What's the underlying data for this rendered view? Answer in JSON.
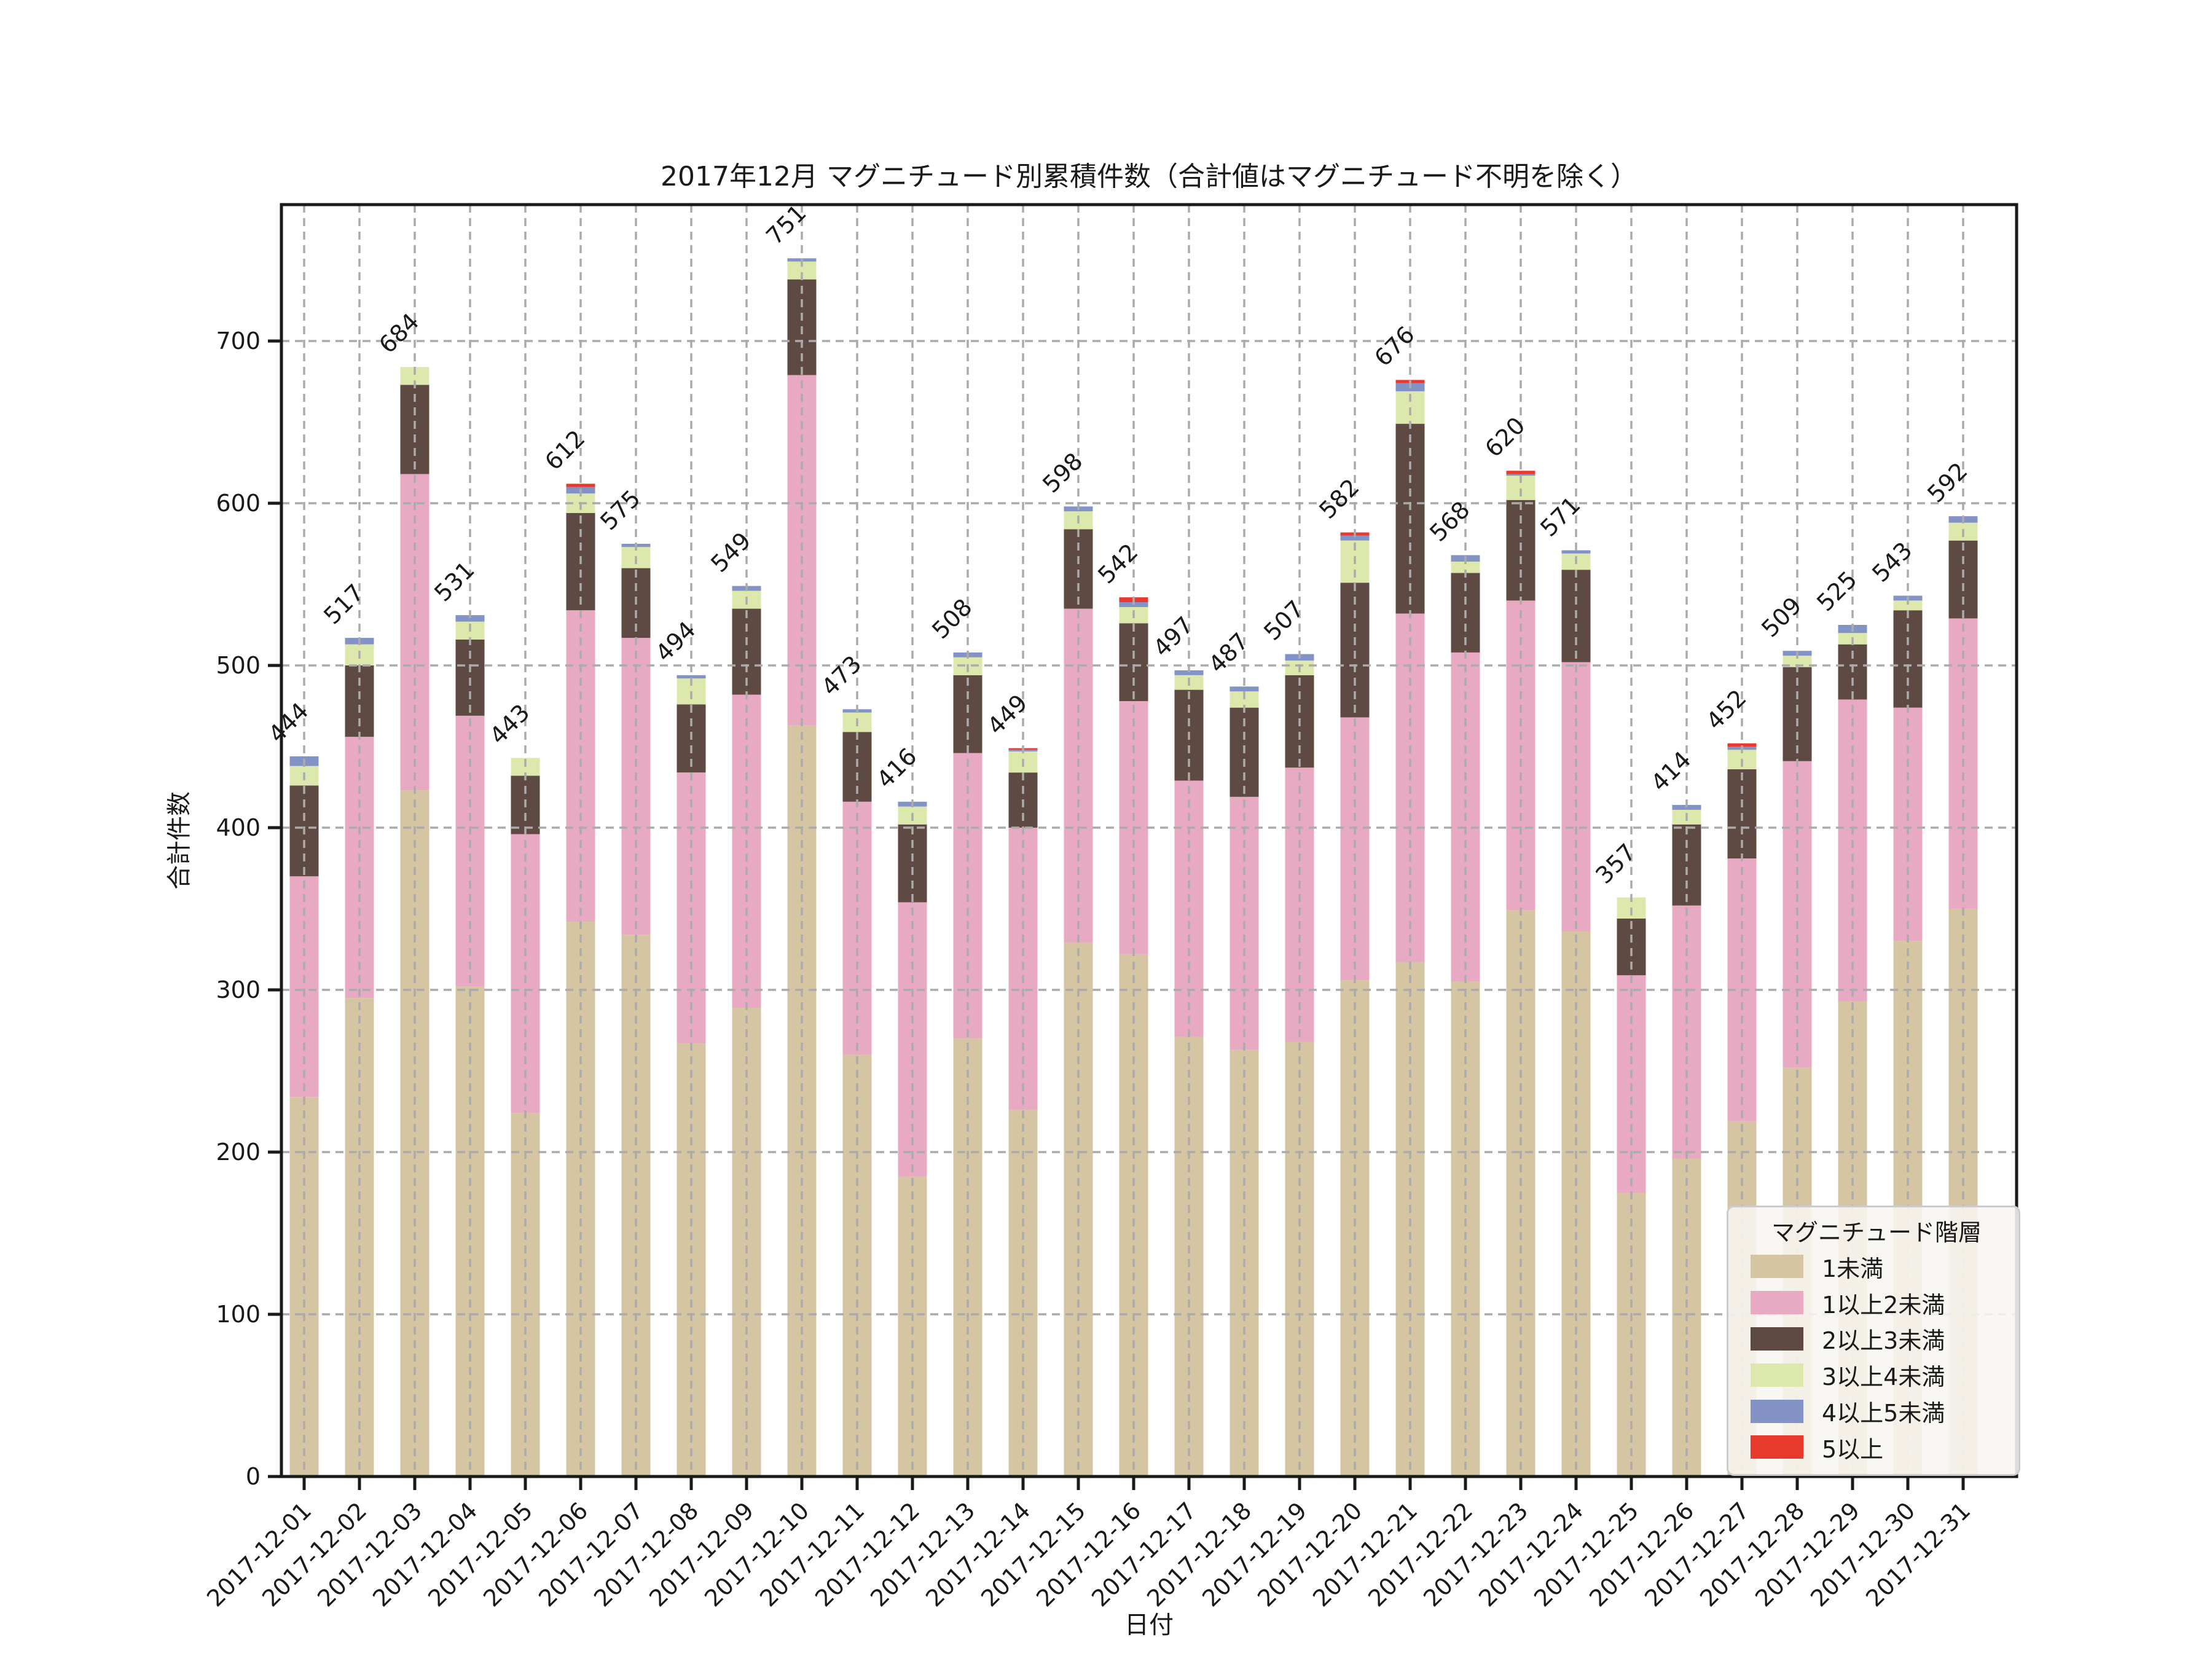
{
  "chart_data": {
    "type": "bar",
    "stacked": true,
    "title": "2017年12月 マグニチュード別累積件数（合計値はマグニチュード不明を除く）",
    "xlabel": "日付",
    "ylabel": "合計件数",
    "ylim": [
      0,
      784
    ],
    "ytick_labels": [
      "0",
      "100",
      "200",
      "300",
      "400",
      "500",
      "600",
      "700"
    ],
    "yticks": [
      0,
      100,
      200,
      300,
      400,
      500,
      600,
      700
    ],
    "grid": "dashed gray gridlines, horizontal at each ytick and vertical at each bar, drawn over bars",
    "legend_title": "マグニチュード階層",
    "legend_position": "lower right",
    "total_label_rotation_deg": 45,
    "xticklabel_rotation_deg": 45,
    "categories": [
      "2017-12-01",
      "2017-12-02",
      "2017-12-03",
      "2017-12-04",
      "2017-12-05",
      "2017-12-06",
      "2017-12-07",
      "2017-12-08",
      "2017-12-09",
      "2017-12-10",
      "2017-12-11",
      "2017-12-12",
      "2017-12-13",
      "2017-12-14",
      "2017-12-15",
      "2017-12-16",
      "2017-12-17",
      "2017-12-18",
      "2017-12-19",
      "2017-12-20",
      "2017-12-21",
      "2017-12-22",
      "2017-12-23",
      "2017-12-24",
      "2017-12-25",
      "2017-12-26",
      "2017-12-27",
      "2017-12-28",
      "2017-12-29",
      "2017-12-30",
      "2017-12-31"
    ],
    "totals": [
      444,
      517,
      684,
      531,
      443,
      612,
      575,
      494,
      549,
      751,
      473,
      416,
      508,
      449,
      598,
      542,
      497,
      487,
      507,
      582,
      676,
      568,
      620,
      571,
      357,
      414,
      452,
      509,
      525,
      543,
      592
    ],
    "series": [
      {
        "name": "1未満",
        "color": "#d5c5a3",
        "values": [
          234,
          295,
          423,
          302,
          224,
          342,
          334,
          267,
          289,
          463,
          260,
          185,
          270,
          226,
          329,
          322,
          271,
          263,
          268,
          306,
          317,
          305,
          349,
          336,
          175,
          196,
          219,
          252,
          293,
          330,
          350
        ]
      },
      {
        "name": "1以上2未満",
        "color": "#e8a9c3",
        "values": [
          136,
          161,
          195,
          167,
          172,
          192,
          183,
          167,
          193,
          216,
          156,
          169,
          176,
          174,
          206,
          156,
          158,
          156,
          169,
          162,
          215,
          203,
          191,
          166,
          134,
          156,
          162,
          189,
          186,
          144,
          179
        ]
      },
      {
        "name": "2以上3未満",
        "color": "#5e4a42",
        "values": [
          56,
          44,
          55,
          47,
          36,
          60,
          43,
          42,
          53,
          59,
          43,
          48,
          48,
          34,
          49,
          48,
          56,
          55,
          57,
          83,
          117,
          49,
          62,
          57,
          35,
          50,
          55,
          58,
          34,
          60,
          48
        ]
      },
      {
        "name": "3以上4未満",
        "color": "#dde8ad",
        "values": [
          12,
          13,
          11,
          11,
          11,
          12,
          13,
          16,
          11,
          11,
          12,
          11,
          11,
          13,
          11,
          10,
          9,
          10,
          9,
          26,
          20,
          7,
          15,
          10,
          13,
          9,
          12,
          7,
          7,
          6,
          11
        ]
      },
      {
        "name": "4以上5未満",
        "color": "#8493c6",
        "values": [
          6,
          4,
          0,
          4,
          0,
          4,
          2,
          2,
          3,
          2,
          2,
          3,
          3,
          1,
          3,
          3,
          3,
          3,
          4,
          3,
          5,
          4,
          1,
          2,
          0,
          3,
          2,
          3,
          5,
          3,
          4
        ]
      },
      {
        "name": "5以上",
        "color": "#e8392e",
        "values": [
          0,
          0,
          0,
          0,
          0,
          2,
          0,
          0,
          0,
          0,
          0,
          0,
          0,
          1,
          0,
          3,
          0,
          0,
          0,
          2,
          2,
          0,
          2,
          0,
          0,
          0,
          2,
          0,
          0,
          0,
          0
        ]
      }
    ],
    "colors": {
      "grid": "#ababab",
      "spine": "#1a1a1a",
      "text": "#1a1a1a",
      "background": "#ffffff"
    }
  }
}
